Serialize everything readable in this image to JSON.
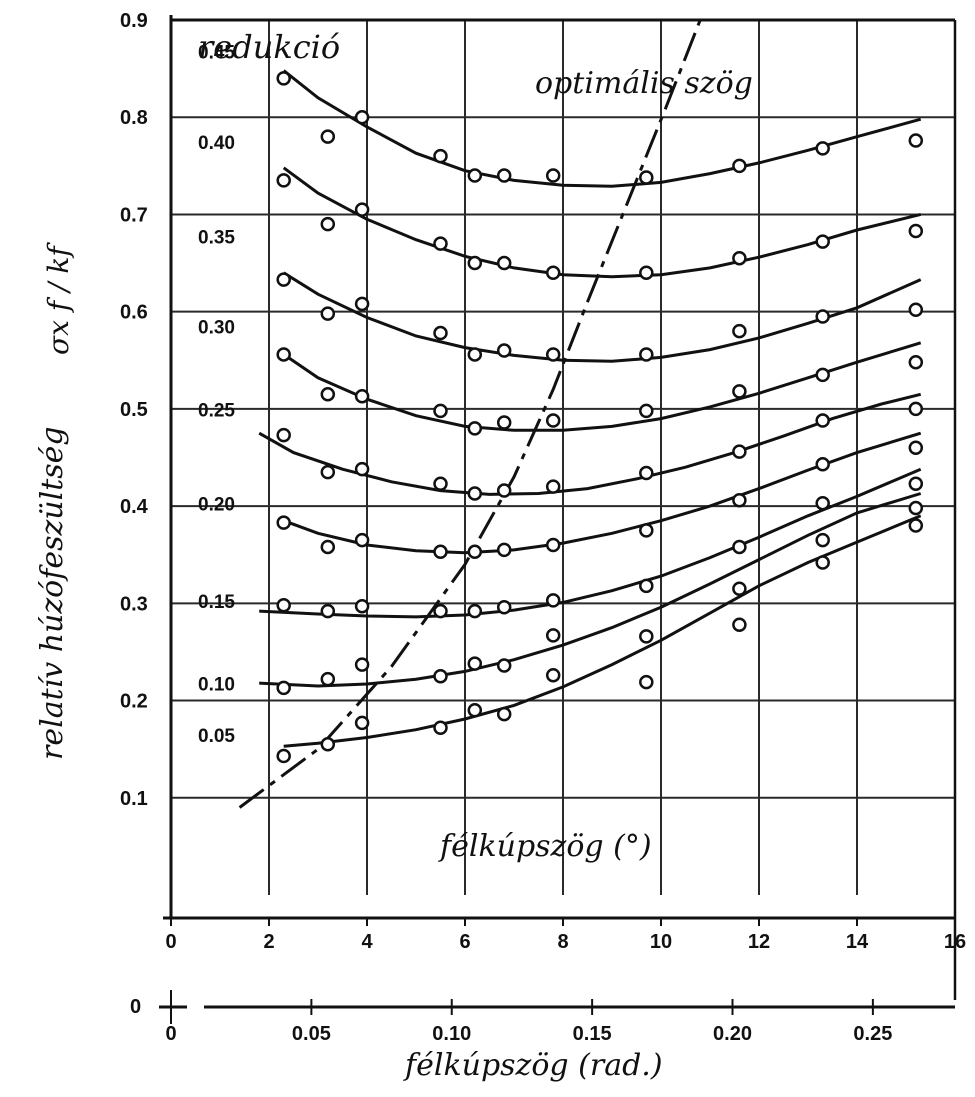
{
  "chart_data": {
    "type": "scatter",
    "ylabel": "relatív húzófeszültség",
    "ylabel_formula": "σx f / kf",
    "xlabel_deg": "félkúpszög (°)",
    "xlabel_rad": "félkúpszög (rad.)",
    "series_label_title": "redukció",
    "annotation": "optimális szög",
    "ylim": [
      0,
      0.9
    ],
    "xlim_deg": [
      0,
      16
    ],
    "xlim_rad": [
      0,
      0.279
    ],
    "y_ticks": [
      "0",
      "0.1",
      "0.2",
      "0.3",
      "0.4",
      "0.5",
      "0.6",
      "0.7",
      "0.8",
      "0.9"
    ],
    "x_ticks_deg": [
      "0",
      "2",
      "4",
      "6",
      "8",
      "10",
      "12",
      "14",
      "16"
    ],
    "x_ticks_rad": [
      "0",
      "0.05",
      "0.10",
      "0.15",
      "0.20",
      "0.25"
    ],
    "grid": true,
    "series": [
      {
        "name": "0.45",
        "points": [
          [
            2.3,
            0.84
          ],
          [
            3.2,
            0.78
          ],
          [
            3.9,
            0.8
          ],
          [
            5.5,
            0.76
          ],
          [
            6.2,
            0.74
          ],
          [
            6.8,
            0.74
          ],
          [
            7.8,
            0.74
          ],
          [
            9.7,
            0.738
          ],
          [
            11.6,
            0.75
          ],
          [
            13.3,
            0.768
          ],
          [
            15.2,
            0.776
          ]
        ],
        "curve": [
          [
            2.3,
            0.848
          ],
          [
            3,
            0.82
          ],
          [
            4,
            0.79
          ],
          [
            5,
            0.763
          ],
          [
            6,
            0.745
          ],
          [
            7,
            0.735
          ],
          [
            8,
            0.73
          ],
          [
            9,
            0.729
          ],
          [
            10,
            0.733
          ],
          [
            11,
            0.742
          ],
          [
            12,
            0.753
          ],
          [
            13,
            0.766
          ],
          [
            14,
            0.78
          ],
          [
            15.3,
            0.798
          ]
        ]
      },
      {
        "name": "0.40",
        "points": [
          [
            2.3,
            0.735
          ],
          [
            3.2,
            0.69
          ],
          [
            3.9,
            0.705
          ],
          [
            5.5,
            0.67
          ],
          [
            6.2,
            0.65
          ],
          [
            6.8,
            0.65
          ],
          [
            7.8,
            0.64
          ],
          [
            9.7,
            0.64
          ],
          [
            11.6,
            0.655
          ],
          [
            13.3,
            0.672
          ],
          [
            15.2,
            0.683
          ]
        ],
        "curve": [
          [
            2.3,
            0.748
          ],
          [
            3,
            0.722
          ],
          [
            4,
            0.695
          ],
          [
            5,
            0.674
          ],
          [
            6,
            0.657
          ],
          [
            7,
            0.645
          ],
          [
            8,
            0.638
          ],
          [
            9,
            0.636
          ],
          [
            10,
            0.638
          ],
          [
            11,
            0.645
          ],
          [
            12,
            0.656
          ],
          [
            13,
            0.669
          ],
          [
            14,
            0.684
          ],
          [
            15.3,
            0.7
          ]
        ]
      },
      {
        "name": "0.35",
        "points": [
          [
            2.3,
            0.633
          ],
          [
            3.2,
            0.598
          ],
          [
            3.9,
            0.608
          ],
          [
            5.5,
            0.578
          ],
          [
            6.2,
            0.556
          ],
          [
            6.8,
            0.56
          ],
          [
            7.8,
            0.556
          ],
          [
            9.7,
            0.556
          ],
          [
            11.6,
            0.58
          ],
          [
            13.3,
            0.595
          ],
          [
            15.2,
            0.602
          ]
        ],
        "curve": [
          [
            2.3,
            0.64
          ],
          [
            3,
            0.618
          ],
          [
            4,
            0.594
          ],
          [
            5,
            0.575
          ],
          [
            6,
            0.563
          ],
          [
            7,
            0.555
          ],
          [
            8,
            0.55
          ],
          [
            9,
            0.549
          ],
          [
            10,
            0.553
          ],
          [
            11,
            0.561
          ],
          [
            12,
            0.573
          ],
          [
            13,
            0.588
          ],
          [
            14,
            0.604
          ],
          [
            15.3,
            0.633
          ]
        ]
      },
      {
        "name": "0.30",
        "points": [
          [
            2.3,
            0.556
          ],
          [
            3.2,
            0.515
          ],
          [
            3.9,
            0.513
          ],
          [
            5.5,
            0.498
          ],
          [
            6.2,
            0.48
          ],
          [
            6.8,
            0.486
          ],
          [
            7.8,
            0.488
          ],
          [
            9.7,
            0.498
          ],
          [
            11.6,
            0.518
          ],
          [
            13.3,
            0.535
          ],
          [
            15.2,
            0.548
          ]
        ],
        "curve": [
          [
            2.3,
            0.556
          ],
          [
            3,
            0.532
          ],
          [
            4,
            0.51
          ],
          [
            5,
            0.493
          ],
          [
            6,
            0.482
          ],
          [
            7,
            0.478
          ],
          [
            8,
            0.478
          ],
          [
            9,
            0.482
          ],
          [
            10,
            0.49
          ],
          [
            11,
            0.502
          ],
          [
            12,
            0.516
          ],
          [
            13,
            0.532
          ],
          [
            14,
            0.548
          ],
          [
            15.3,
            0.568
          ]
        ]
      },
      {
        "name": "0.25",
        "points": [
          [
            2.3,
            0.473
          ],
          [
            3.2,
            0.435
          ],
          [
            3.9,
            0.438
          ],
          [
            5.5,
            0.423
          ],
          [
            6.2,
            0.413
          ],
          [
            6.8,
            0.416
          ],
          [
            7.8,
            0.42
          ],
          [
            9.7,
            0.434
          ],
          [
            11.6,
            0.456
          ],
          [
            13.3,
            0.488
          ],
          [
            15.2,
            0.5
          ]
        ],
        "curve": [
          [
            1.8,
            0.475
          ],
          [
            2.5,
            0.455
          ],
          [
            3.5,
            0.438
          ],
          [
            4.5,
            0.425
          ],
          [
            5.5,
            0.416
          ],
          [
            6.5,
            0.412
          ],
          [
            7.5,
            0.413
          ],
          [
            8.5,
            0.418
          ],
          [
            9.5,
            0.428
          ],
          [
            10.5,
            0.44
          ],
          [
            11.5,
            0.455
          ],
          [
            12.5,
            0.472
          ],
          [
            13.5,
            0.49
          ],
          [
            14.5,
            0.505
          ],
          [
            15.3,
            0.515
          ]
        ]
      },
      {
        "name": "0.20",
        "points": [
          [
            2.3,
            0.383
          ],
          [
            3.2,
            0.358
          ],
          [
            3.9,
            0.365
          ],
          [
            5.5,
            0.353
          ],
          [
            6.2,
            0.353
          ],
          [
            6.8,
            0.355
          ],
          [
            7.8,
            0.36
          ],
          [
            9.7,
            0.375
          ],
          [
            11.6,
            0.406
          ],
          [
            13.3,
            0.443
          ],
          [
            15.2,
            0.46
          ]
        ],
        "curve": [
          [
            2.3,
            0.385
          ],
          [
            3,
            0.372
          ],
          [
            4,
            0.36
          ],
          [
            5,
            0.354
          ],
          [
            6,
            0.352
          ],
          [
            7,
            0.355
          ],
          [
            8,
            0.362
          ],
          [
            9,
            0.372
          ],
          [
            10,
            0.385
          ],
          [
            11,
            0.4
          ],
          [
            12,
            0.418
          ],
          [
            13,
            0.437
          ],
          [
            14,
            0.455
          ],
          [
            15.3,
            0.475
          ]
        ]
      },
      {
        "name": "0.15",
        "points": [
          [
            2.3,
            0.298
          ],
          [
            3.2,
            0.292
          ],
          [
            3.9,
            0.297
          ],
          [
            5.5,
            0.292
          ],
          [
            6.2,
            0.292
          ],
          [
            6.8,
            0.296
          ],
          [
            7.8,
            0.303
          ],
          [
            9.7,
            0.318
          ],
          [
            11.6,
            0.358
          ],
          [
            13.3,
            0.403
          ],
          [
            15.2,
            0.423
          ]
        ],
        "curve": [
          [
            1.8,
            0.292
          ],
          [
            3,
            0.289
          ],
          [
            4,
            0.287
          ],
          [
            5,
            0.286
          ],
          [
            6,
            0.288
          ],
          [
            7,
            0.293
          ],
          [
            8,
            0.301
          ],
          [
            9,
            0.313
          ],
          [
            10,
            0.328
          ],
          [
            11,
            0.347
          ],
          [
            12,
            0.368
          ],
          [
            13,
            0.39
          ],
          [
            14,
            0.41
          ],
          [
            15.3,
            0.438
          ]
        ]
      },
      {
        "name": "0.10",
        "points": [
          [
            2.3,
            0.213
          ],
          [
            3.2,
            0.222
          ],
          [
            3.9,
            0.237
          ],
          [
            5.5,
            0.225
          ],
          [
            6.2,
            0.238
          ],
          [
            6.8,
            0.236
          ],
          [
            7.8,
            0.267
          ],
          [
            9.7,
            0.266
          ],
          [
            11.6,
            0.315
          ],
          [
            13.3,
            0.365
          ],
          [
            15.2,
            0.398
          ]
        ],
        "curve": [
          [
            1.8,
            0.218
          ],
          [
            3,
            0.215
          ],
          [
            4,
            0.217
          ],
          [
            5,
            0.222
          ],
          [
            6,
            0.23
          ],
          [
            7,
            0.242
          ],
          [
            8,
            0.257
          ],
          [
            9,
            0.275
          ],
          [
            10,
            0.296
          ],
          [
            11,
            0.32
          ],
          [
            12,
            0.345
          ],
          [
            13,
            0.37
          ],
          [
            14,
            0.393
          ],
          [
            15.3,
            0.413
          ]
        ]
      },
      {
        "name": "0.05",
        "points": [
          [
            2.3,
            0.143
          ],
          [
            3.2,
            0.155
          ],
          [
            3.9,
            0.177
          ],
          [
            5.5,
            0.172
          ],
          [
            6.2,
            0.19
          ],
          [
            6.8,
            0.186
          ],
          [
            7.8,
            0.226
          ],
          [
            9.7,
            0.219
          ],
          [
            11.6,
            0.278
          ],
          [
            13.3,
            0.342
          ],
          [
            15.2,
            0.38
          ]
        ],
        "curve": [
          [
            2.3,
            0.153
          ],
          [
            3,
            0.156
          ],
          [
            4,
            0.162
          ],
          [
            5,
            0.17
          ],
          [
            6,
            0.181
          ],
          [
            7,
            0.195
          ],
          [
            8,
            0.214
          ],
          [
            9,
            0.237
          ],
          [
            10,
            0.262
          ],
          [
            11,
            0.29
          ],
          [
            12,
            0.318
          ],
          [
            13,
            0.342
          ],
          [
            14,
            0.363
          ],
          [
            15.3,
            0.39
          ]
        ]
      }
    ],
    "optimal_angle_curve": [
      [
        1.4,
        0.09
      ],
      [
        3,
        0.15
      ],
      [
        4.5,
        0.235
      ],
      [
        6,
        0.34
      ],
      [
        7,
        0.43
      ],
      [
        7.8,
        0.52
      ],
      [
        8.5,
        0.61
      ],
      [
        9.3,
        0.71
      ],
      [
        10.1,
        0.81
      ],
      [
        10.8,
        0.9
      ]
    ]
  }
}
